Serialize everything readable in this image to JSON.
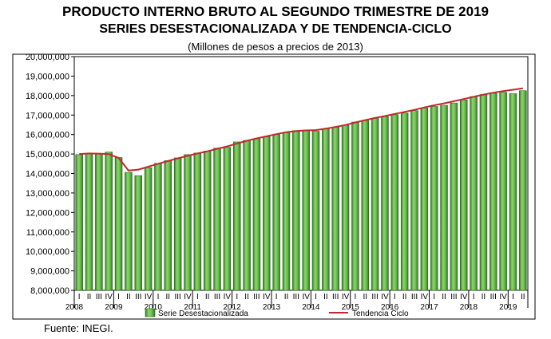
{
  "header": {
    "title_line1": "PRODUCTO INTERNO BRUTO AL SEGUNDO TRIMESTRE DE 2019",
    "title_line2": "SERIES DESESTACIONALIZADA Y DE TENDENCIA-CICLO",
    "subtitle": "(Millones de pesos a precios de 2013)"
  },
  "footer": {
    "source": "Fuente: INEGI."
  },
  "chart_data": {
    "type": "bar",
    "categories": [
      "2008-I",
      "2008-II",
      "2008-III",
      "2008-IV",
      "2009-I",
      "2009-II",
      "2009-III",
      "2009-IV",
      "2010-I",
      "2010-II",
      "2010-III",
      "2010-IV",
      "2011-I",
      "2011-II",
      "2011-III",
      "2011-IV",
      "2012-I",
      "2012-II",
      "2012-III",
      "2012-IV",
      "2013-I",
      "2013-II",
      "2013-III",
      "2013-IV",
      "2014-I",
      "2014-II",
      "2014-III",
      "2014-IV",
      "2015-I",
      "2015-II",
      "2015-III",
      "2015-IV",
      "2016-I",
      "2016-II",
      "2016-III",
      "2016-IV",
      "2017-I",
      "2017-II",
      "2017-III",
      "2017-IV",
      "2018-I",
      "2018-II",
      "2018-III",
      "2018-IV",
      "2019-I",
      "2019-II"
    ],
    "quarter_labels": [
      "I",
      "II",
      "III",
      "IV"
    ],
    "years": [
      "2008",
      "2009",
      "2010",
      "2011",
      "2012",
      "2013",
      "2014",
      "2015",
      "2016",
      "2017",
      "2018",
      "2019"
    ],
    "series": [
      {
        "name": "Serie Desestacionalizada",
        "kind": "bar",
        "color": "#4ea83a",
        "values": [
          14970000,
          15030000,
          15010000,
          15100000,
          14820000,
          14060000,
          13890000,
          14300000,
          14520000,
          14660000,
          14800000,
          14970000,
          15050000,
          15150000,
          15300000,
          15340000,
          15620000,
          15700000,
          15780000,
          15890000,
          16000000,
          16100000,
          16200000,
          16230000,
          16170000,
          16290000,
          16380000,
          16480000,
          16640000,
          16720000,
          16830000,
          16920000,
          17020000,
          17100000,
          17230000,
          17360000,
          17440000,
          17500000,
          17620000,
          17780000,
          17950000,
          18050000,
          18120000,
          18170000,
          18100000,
          18250000
        ]
      },
      {
        "name": "Tendencia Ciclo",
        "kind": "line",
        "color": "#c0282d",
        "values": [
          15000000,
          15030000,
          15020000,
          14990000,
          14800000,
          14150000,
          14200000,
          14350000,
          14500000,
          14640000,
          14780000,
          14910000,
          15030000,
          15140000,
          15270000,
          15390000,
          15540000,
          15680000,
          15800000,
          15910000,
          16020000,
          16120000,
          16180000,
          16210000,
          16230000,
          16300000,
          16390000,
          16490000,
          16620000,
          16740000,
          16850000,
          16950000,
          17060000,
          17160000,
          17270000,
          17390000,
          17500000,
          17600000,
          17710000,
          17820000,
          17940000,
          18050000,
          18150000,
          18230000,
          18300000,
          18370000
        ]
      }
    ],
    "y_ticks": [
      "20,000,000",
      "19,000,000",
      "18,000,000",
      "17,000,000",
      "16,000,000",
      "15,000,000",
      "14,000,000",
      "13,000,000",
      "12,000,000",
      "11,000,000",
      "10,000,000",
      "9,000,000",
      "8,000,000"
    ],
    "ylim": [
      8000000,
      20000000
    ],
    "grid": false,
    "legend_position": "bottom"
  }
}
